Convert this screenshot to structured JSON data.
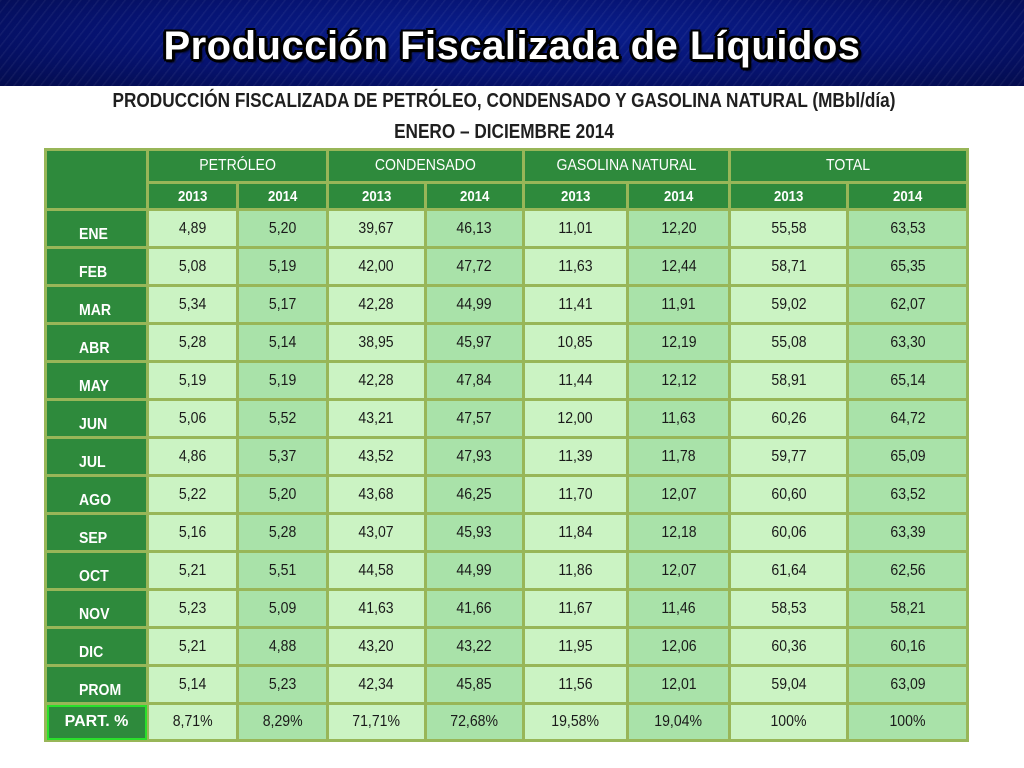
{
  "slide": {
    "title": "Producción Fiscalizada de Líquidos"
  },
  "table": {
    "heading_line1": "PRODUCCIÓN FISCALIZADA DE PETRÓLEO, CONDENSADO Y GASOLINA NATURAL (MBbl/día)",
    "heading_line2": "ENERO – DICIEMBRE 2014",
    "groups": [
      "PETRÓLEO",
      "CONDENSADO",
      "GASOLINA NATURAL",
      "TOTAL"
    ],
    "years": [
      "2013",
      "2014",
      "2013",
      "2014",
      "2013",
      "2014",
      "2013",
      "2014"
    ],
    "rows": [
      {
        "label": "ENE",
        "values": [
          "4,89",
          "5,20",
          "39,67",
          "46,13",
          "11,01",
          "12,20",
          "55,58",
          "63,53"
        ]
      },
      {
        "label": "FEB",
        "values": [
          "5,08",
          "5,19",
          "42,00",
          "47,72",
          "11,63",
          "12,44",
          "58,71",
          "65,35"
        ]
      },
      {
        "label": "MAR",
        "values": [
          "5,34",
          "5,17",
          "42,28",
          "44,99",
          "11,41",
          "11,91",
          "59,02",
          "62,07"
        ]
      },
      {
        "label": "ABR",
        "values": [
          "5,28",
          "5,14",
          "38,95",
          "45,97",
          "10,85",
          "12,19",
          "55,08",
          "63,30"
        ]
      },
      {
        "label": "MAY",
        "values": [
          "5,19",
          "5,19",
          "42,28",
          "47,84",
          "11,44",
          "12,12",
          "58,91",
          "65,14"
        ]
      },
      {
        "label": "JUN",
        "values": [
          "5,06",
          "5,52",
          "43,21",
          "47,57",
          "12,00",
          "11,63",
          "60,26",
          "64,72"
        ]
      },
      {
        "label": "JUL",
        "values": [
          "4,86",
          "5,37",
          "43,52",
          "47,93",
          "11,39",
          "11,78",
          "59,77",
          "65,09"
        ]
      },
      {
        "label": "AGO",
        "values": [
          "5,22",
          "5,20",
          "43,68",
          "46,25",
          "11,70",
          "12,07",
          "60,60",
          "63,52"
        ]
      },
      {
        "label": "SEP",
        "values": [
          "5,16",
          "5,28",
          "43,07",
          "45,93",
          "11,84",
          "12,18",
          "60,06",
          "63,39"
        ]
      },
      {
        "label": "OCT",
        "values": [
          "5,21",
          "5,51",
          "44,58",
          "44,99",
          "11,86",
          "12,07",
          "61,64",
          "62,56"
        ]
      },
      {
        "label": "NOV",
        "values": [
          "5,23",
          "5,09",
          "41,63",
          "41,66",
          "11,67",
          "11,46",
          "58,53",
          "58,21"
        ]
      },
      {
        "label": "DIC",
        "values": [
          "5,21",
          "4,88",
          "43,20",
          "43,22",
          "11,95",
          "12,06",
          "60,36",
          "60,16"
        ]
      },
      {
        "label": "PROM",
        "values": [
          "5,14",
          "5,23",
          "42,34",
          "45,85",
          "11,56",
          "12,01",
          "59,04",
          "63,09"
        ]
      }
    ],
    "participation": {
      "label": "PART. %",
      "values": [
        "8,71%",
        "8,29%",
        "71,71%",
        "72,68%",
        "19,58%",
        "19,04%",
        "100%",
        "100%"
      ]
    }
  },
  "colors": {
    "header_band": "#061372",
    "header_cell": "#2e8a3c",
    "cell_light": "#cbf3c3",
    "cell_dark": "#a9e2a9",
    "grid": "#98b658"
  }
}
